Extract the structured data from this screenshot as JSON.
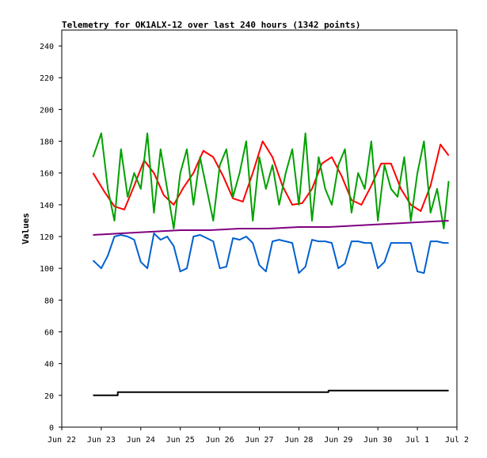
{
  "chart_data": {
    "type": "line",
    "title": "Telemetry for OK1ALX-12 over last 240 hours (1342 points)",
    "ylabel": "Values",
    "xlabel": "",
    "ylim": [
      0,
      250
    ],
    "yticks": [
      0,
      20,
      40,
      60,
      80,
      100,
      120,
      140,
      160,
      180,
      200,
      220,
      240
    ],
    "xlim": [
      "2024-06-22",
      "2024-07-02"
    ],
    "xticks": [
      {
        "date": "2024-06-22",
        "label": "Jun 22"
      },
      {
        "date": "2024-06-23",
        "label": "Jun 23"
      },
      {
        "date": "2024-06-24",
        "label": "Jun 24"
      },
      {
        "date": "2024-06-25",
        "label": "Jun 25"
      },
      {
        "date": "2024-06-26",
        "label": "Jun 26"
      },
      {
        "date": "2024-06-27",
        "label": "Jun 27"
      },
      {
        "date": "2024-06-28",
        "label": "Jun 28"
      },
      {
        "date": "2024-06-29",
        "label": "Jun 29"
      },
      {
        "date": "2024-06-30",
        "label": "Jun 30"
      },
      {
        "date": "2024-07-01",
        "label": "Jul 1"
      },
      {
        "date": "2024-07-02",
        "label": "Jul 2"
      }
    ],
    "grid": false,
    "series": [
      {
        "color": "#ff0000",
        "x": [
          "2024-06-22 19:00",
          "2024-06-23 02:00",
          "2024-06-23 08:00",
          "2024-06-23 14:00",
          "2024-06-23 20:00",
          "2024-06-24 02:00",
          "2024-06-24 08:00",
          "2024-06-24 14:00",
          "2024-06-24 20:00",
          "2024-06-25 02:00",
          "2024-06-25 08:00",
          "2024-06-25 14:00",
          "2024-06-25 20:00",
          "2024-06-26 02:00",
          "2024-06-26 08:00",
          "2024-06-26 14:00",
          "2024-06-26 20:00",
          "2024-06-27 02:00",
          "2024-06-27 08:00",
          "2024-06-27 14:00",
          "2024-06-27 20:00",
          "2024-06-28 02:00",
          "2024-06-28 08:00",
          "2024-06-28 14:00",
          "2024-06-28 20:00",
          "2024-06-29 02:00",
          "2024-06-29 08:00",
          "2024-06-29 14:00",
          "2024-06-29 20:00",
          "2024-06-30 02:00",
          "2024-06-30 08:00",
          "2024-06-30 14:00",
          "2024-06-30 20:00",
          "2024-07-01 02:00",
          "2024-07-01 08:00",
          "2024-07-01 14:00",
          "2024-07-01 19:00"
        ],
        "y": [
          160,
          148,
          139,
          137,
          152,
          168,
          160,
          146,
          140,
          151,
          160,
          174,
          170,
          158,
          144,
          142,
          160,
          180,
          170,
          152,
          140,
          141,
          150,
          166,
          170,
          158,
          143,
          140,
          152,
          166,
          166,
          150,
          140,
          136,
          152,
          178,
          171
        ]
      },
      {
        "color": "#00a000",
        "x": [
          "2024-06-22 19:00",
          "2024-06-23 00:00",
          "2024-06-23 04:00",
          "2024-06-23 08:00",
          "2024-06-23 12:00",
          "2024-06-23 16:00",
          "2024-06-23 20:00",
          "2024-06-24 00:00",
          "2024-06-24 04:00",
          "2024-06-24 08:00",
          "2024-06-24 12:00",
          "2024-06-24 16:00",
          "2024-06-24 20:00",
          "2024-06-25 00:00",
          "2024-06-25 04:00",
          "2024-06-25 08:00",
          "2024-06-25 12:00",
          "2024-06-25 16:00",
          "2024-06-25 20:00",
          "2024-06-26 00:00",
          "2024-06-26 04:00",
          "2024-06-26 08:00",
          "2024-06-26 12:00",
          "2024-06-26 16:00",
          "2024-06-26 20:00",
          "2024-06-27 00:00",
          "2024-06-27 04:00",
          "2024-06-27 08:00",
          "2024-06-27 12:00",
          "2024-06-27 16:00",
          "2024-06-27 20:00",
          "2024-06-28 00:00",
          "2024-06-28 04:00",
          "2024-06-28 08:00",
          "2024-06-28 12:00",
          "2024-06-28 16:00",
          "2024-06-28 20:00",
          "2024-06-29 00:00",
          "2024-06-29 04:00",
          "2024-06-29 08:00",
          "2024-06-29 12:00",
          "2024-06-29 16:00",
          "2024-06-29 20:00",
          "2024-06-30 00:00",
          "2024-06-30 04:00",
          "2024-06-30 08:00",
          "2024-06-30 12:00",
          "2024-06-30 16:00",
          "2024-06-30 20:00",
          "2024-07-01 00:00",
          "2024-07-01 04:00",
          "2024-07-01 08:00",
          "2024-07-01 12:00",
          "2024-07-01 16:00",
          "2024-07-01 19:00"
        ],
        "y": [
          170,
          185,
          150,
          130,
          175,
          145,
          160,
          150,
          185,
          135,
          175,
          150,
          125,
          160,
          175,
          140,
          170,
          150,
          130,
          165,
          175,
          145,
          160,
          180,
          130,
          170,
          150,
          165,
          140,
          160,
          175,
          140,
          185,
          130,
          170,
          150,
          140,
          165,
          175,
          135,
          160,
          150,
          180,
          130,
          165,
          150,
          145,
          170,
          130,
          160,
          180,
          135,
          150,
          125,
          155
        ]
      },
      {
        "color": "#0060d0",
        "x": [
          "2024-06-22 19:00",
          "2024-06-23 00:00",
          "2024-06-23 04:00",
          "2024-06-23 08:00",
          "2024-06-23 12:00",
          "2024-06-23 16:00",
          "2024-06-23 20:00",
          "2024-06-24 00:00",
          "2024-06-24 04:00",
          "2024-06-24 08:00",
          "2024-06-24 12:00",
          "2024-06-24 16:00",
          "2024-06-24 20:00",
          "2024-06-25 00:00",
          "2024-06-25 04:00",
          "2024-06-25 08:00",
          "2024-06-25 12:00",
          "2024-06-25 16:00",
          "2024-06-25 20:00",
          "2024-06-26 00:00",
          "2024-06-26 04:00",
          "2024-06-26 08:00",
          "2024-06-26 12:00",
          "2024-06-26 16:00",
          "2024-06-26 20:00",
          "2024-06-27 00:00",
          "2024-06-27 04:00",
          "2024-06-27 08:00",
          "2024-06-27 12:00",
          "2024-06-27 16:00",
          "2024-06-27 20:00",
          "2024-06-28 00:00",
          "2024-06-28 04:00",
          "2024-06-28 08:00",
          "2024-06-28 12:00",
          "2024-06-28 16:00",
          "2024-06-28 20:00",
          "2024-06-29 00:00",
          "2024-06-29 04:00",
          "2024-06-29 08:00",
          "2024-06-29 12:00",
          "2024-06-29 16:00",
          "2024-06-29 20:00",
          "2024-06-30 00:00",
          "2024-06-30 04:00",
          "2024-06-30 08:00",
          "2024-06-30 12:00",
          "2024-06-30 16:00",
          "2024-06-30 20:00",
          "2024-07-01 00:00",
          "2024-07-01 04:00",
          "2024-07-01 08:00",
          "2024-07-01 12:00",
          "2024-07-01 16:00",
          "2024-07-01 19:00"
        ],
        "y": [
          105,
          100,
          108,
          120,
          121,
          120,
          118,
          104,
          100,
          122,
          118,
          120,
          114,
          98,
          100,
          120,
          121,
          119,
          117,
          100,
          101,
          119,
          118,
          120,
          116,
          102,
          98,
          117,
          118,
          117,
          116,
          97,
          101,
          118,
          117,
          117,
          116,
          100,
          103,
          117,
          117,
          116,
          116,
          100,
          104,
          116,
          116,
          116,
          116,
          98,
          97,
          117,
          117,
          116,
          116
        ]
      },
      {
        "color": "#800080",
        "x": [
          "2024-06-22 19:00",
          "2024-06-23 12:00",
          "2024-06-24 06:00",
          "2024-06-25 00:00",
          "2024-06-25 18:00",
          "2024-06-26 12:00",
          "2024-06-27 06:00",
          "2024-06-28 00:00",
          "2024-06-28 18:00",
          "2024-06-29 12:00",
          "2024-06-30 06:00",
          "2024-07-01 00:00",
          "2024-07-01 19:00"
        ],
        "y": [
          121,
          122,
          123,
          124,
          124,
          125,
          125,
          126,
          126,
          127,
          128,
          129,
          130
        ]
      },
      {
        "color": "#000000",
        "x": [
          "2024-06-22 19:00",
          "2024-06-23 10:00",
          "2024-06-23 10:00",
          "2024-06-28 18:00",
          "2024-06-28 18:00",
          "2024-07-01 19:00"
        ],
        "y": [
          20,
          20,
          22,
          22,
          23,
          23
        ]
      }
    ]
  }
}
